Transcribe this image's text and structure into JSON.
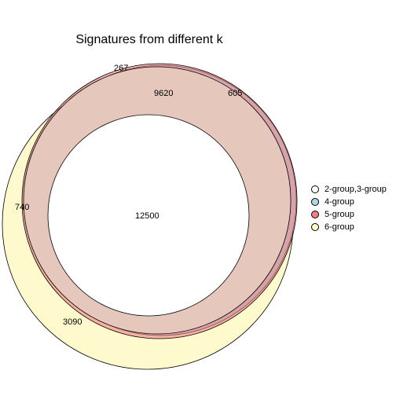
{
  "title": "Signatures from different k",
  "sets": [
    {
      "name": "2-group,3-group",
      "color": "#ffffff"
    },
    {
      "name": "4-group",
      "color": "#add8e6"
    },
    {
      "name": "5-group",
      "color": "#f08080"
    },
    {
      "name": "6-group",
      "color": "#fffacd"
    }
  ],
  "regions": [
    {
      "label": "267"
    },
    {
      "label": "9620"
    },
    {
      "label": "605"
    },
    {
      "label": "740"
    },
    {
      "label": "12500"
    },
    {
      "label": "3090"
    }
  ]
}
